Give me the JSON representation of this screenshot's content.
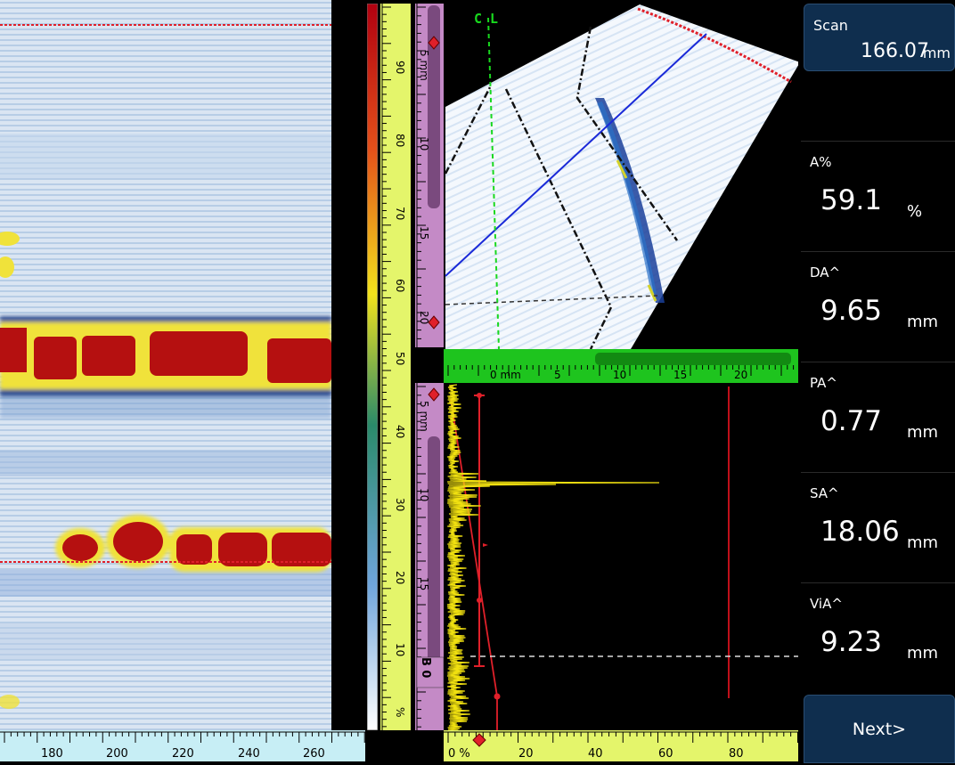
{
  "cscan": {
    "axis_ticks": [
      "180",
      "200",
      "220",
      "240",
      "260"
    ]
  },
  "amplitude_ruler": {
    "ticks": [
      "90",
      "80",
      "70",
      "60",
      "50",
      "40",
      "30",
      "20",
      "10",
      "%"
    ]
  },
  "depth_ruler_top": {
    "ticks": [
      "5 mm",
      "10",
      "15",
      "20"
    ]
  },
  "depth_ruler_bottom": {
    "ticks": [
      "5 mm",
      "10",
      "15",
      "20"
    ],
    "gate_label": "B 0"
  },
  "sector": {
    "cl_label": "C L",
    "axis_ticks": [
      "0 mm",
      "5",
      "10",
      "15",
      "20"
    ]
  },
  "ascan": {
    "axis_ticks": [
      "0 %",
      "20",
      "40",
      "60",
      "80"
    ]
  },
  "panel": {
    "scan": {
      "label": "Scan",
      "value": "166.07",
      "unit": "mm"
    },
    "readings": [
      {
        "label": "A%",
        "value": "59.1",
        "unit": "%"
      },
      {
        "label": "DA^",
        "value": "9.65",
        "unit": "mm"
      },
      {
        "label": "PA^",
        "value": "0.77",
        "unit": "mm"
      },
      {
        "label": "SA^",
        "value": "18.06",
        "unit": "mm"
      },
      {
        "label": "ViA^",
        "value": "9.23",
        "unit": "mm"
      }
    ],
    "next_label": "Next>"
  },
  "colors": {
    "accent_blue": "#0f2e4e",
    "ruler_yellow": "#e4f56b",
    "ruler_purple": "#c48ac6",
    "cursor_red": "#e0202a",
    "signal_yellow": "#f0e010",
    "axis_green": "#18d81e"
  }
}
